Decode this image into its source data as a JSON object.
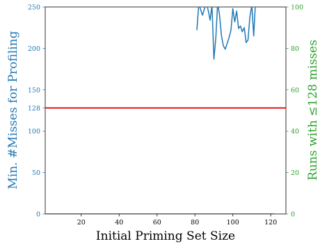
{
  "chart_data": {
    "type": "line",
    "xlabel": "Initial Priming Set Size",
    "ylabel_left": "Min. #Misses for Profiling",
    "ylabel_right": "Runs with ≤128 misses",
    "xlim": [
      1,
      128
    ],
    "ylim_left": [
      0,
      250
    ],
    "ylim_right": [
      0,
      100
    ],
    "x_ticks": [
      "20",
      "40",
      "60",
      "80",
      "100",
      "120"
    ],
    "y_left_ticks": [
      "0",
      "50",
      "100",
      "128",
      "150",
      "200",
      "250"
    ],
    "y_right_ticks": [
      "0",
      "20",
      "40",
      "60",
      "80",
      "100"
    ],
    "colors": {
      "left_axis": "#1f77b4",
      "right_axis": "#2ca02c",
      "threshold": "#e41a1c",
      "series": "#1f77b4"
    },
    "threshold_line": {
      "y": 128
    },
    "series": [
      {
        "axis": "left",
        "x": [
          81,
          82,
          83,
          84,
          85,
          86,
          87,
          88,
          89,
          90,
          91,
          92,
          93,
          94,
          95,
          96,
          97,
          98,
          99,
          100,
          101,
          102,
          103,
          104,
          105,
          106,
          107,
          108,
          109,
          110,
          111,
          112
        ],
        "y": [
          222,
          253,
          247,
          240,
          248,
          255,
          246,
          234,
          252,
          187,
          212,
          255,
          240,
          215,
          203,
          199,
          206,
          213,
          222,
          248,
          232,
          245,
          224,
          227,
          220,
          225,
          207,
          210,
          238,
          252,
          215,
          258
        ]
      },
      {
        "axis": "right",
        "x": [
          1,
          122
        ],
        "y": [
          0,
          0
        ]
      }
    ]
  }
}
